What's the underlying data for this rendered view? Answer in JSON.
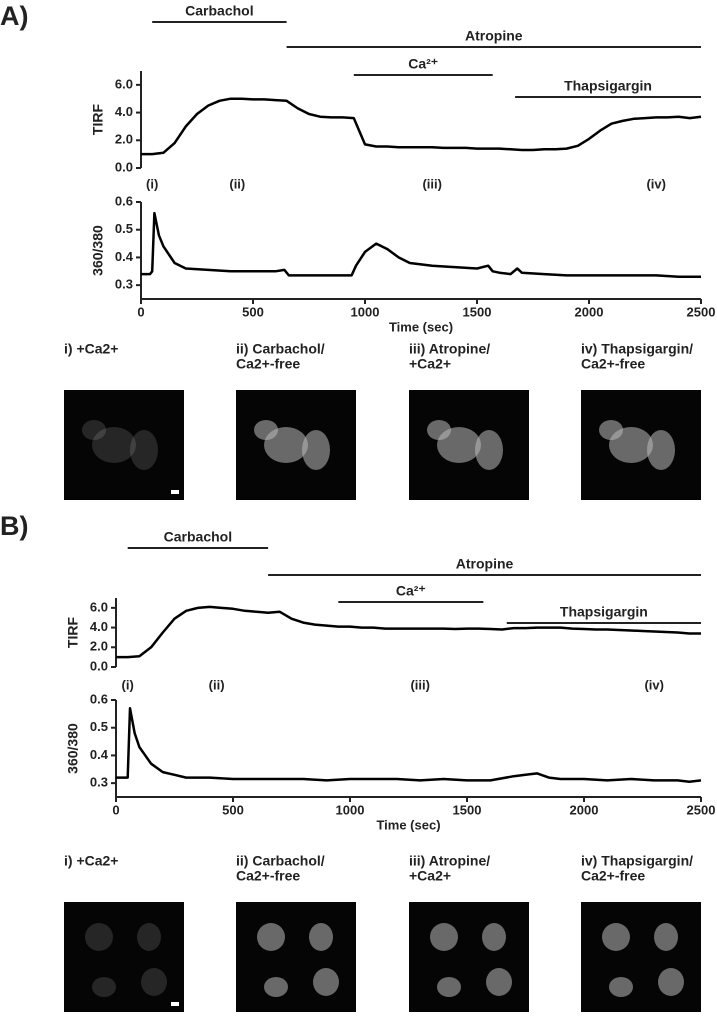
{
  "chart_data": [
    {
      "type": "line",
      "ylabel": "TIRF",
      "color": "#000000",
      "x": [
        0,
        50,
        100,
        150,
        200,
        250,
        300,
        350,
        400,
        450,
        500,
        550,
        600,
        650,
        700,
        750,
        800,
        850,
        900,
        950,
        1000,
        1050,
        1100,
        1150,
        1200,
        1250,
        1300,
        1350,
        1400,
        1450,
        1500,
        1550,
        1600,
        1650,
        1700,
        1750,
        1800,
        1850,
        1900,
        1950,
        2000,
        2050,
        2100,
        2150,
        2200,
        2250,
        2300,
        2350,
        2400,
        2450,
        2500
      ],
      "values": [
        1.0,
        1.0,
        1.1,
        1.8,
        3.0,
        3.9,
        4.5,
        4.85,
        5.0,
        5.0,
        4.95,
        4.95,
        4.9,
        4.85,
        4.3,
        3.9,
        3.7,
        3.65,
        3.65,
        3.6,
        1.7,
        1.55,
        1.55,
        1.5,
        1.5,
        1.5,
        1.5,
        1.45,
        1.45,
        1.45,
        1.4,
        1.4,
        1.4,
        1.35,
        1.3,
        1.3,
        1.35,
        1.35,
        1.4,
        1.6,
        2.1,
        2.7,
        3.2,
        3.4,
        3.55,
        3.6,
        3.65,
        3.65,
        3.7,
        3.6,
        3.7
      ],
      "xlim": [
        0,
        2500
      ],
      "ylim": [
        0,
        7
      ],
      "yticks": [
        {
          "value": 0,
          "label": "0.0"
        },
        {
          "value": 2,
          "label": "2.0"
        },
        {
          "value": 4,
          "label": "4.0"
        },
        {
          "value": 6,
          "label": "6.0"
        }
      ],
      "treatments": [
        {
          "label": "Carbachol",
          "start": 50,
          "end": 650
        },
        {
          "label": "Atropine",
          "start": 650,
          "end": 2500
        },
        {
          "label": "Ca²⁺",
          "start": 950,
          "end": 1570
        },
        {
          "label": "Thapsigargin",
          "start": 1670,
          "end": 2500
        }
      ],
      "annotations": [
        {
          "text": "(i)",
          "x": 50
        },
        {
          "text": "(ii)",
          "x": 430
        },
        {
          "text": "(iii)",
          "x": 1300
        },
        {
          "text": "(iv)",
          "x": 2300
        }
      ]
    },
    {
      "type": "line",
      "ylabel": "360/380",
      "xlabel": "Time (sec)",
      "color": "#000000",
      "x": [
        0,
        40,
        50,
        60,
        80,
        100,
        150,
        200,
        300,
        400,
        500,
        600,
        640,
        660,
        700,
        800,
        900,
        940,
        960,
        1000,
        1050,
        1100,
        1150,
        1200,
        1300,
        1400,
        1500,
        1550,
        1570,
        1600,
        1650,
        1680,
        1700,
        1800,
        1900,
        2000,
        2100,
        2200,
        2300,
        2400,
        2500
      ],
      "values": [
        0.34,
        0.34,
        0.35,
        0.56,
        0.48,
        0.44,
        0.38,
        0.36,
        0.355,
        0.35,
        0.35,
        0.35,
        0.355,
        0.335,
        0.335,
        0.335,
        0.335,
        0.335,
        0.37,
        0.42,
        0.45,
        0.43,
        0.4,
        0.38,
        0.37,
        0.365,
        0.36,
        0.37,
        0.35,
        0.345,
        0.34,
        0.36,
        0.345,
        0.34,
        0.335,
        0.335,
        0.335,
        0.335,
        0.335,
        0.33,
        0.33
      ],
      "xlim": [
        0,
        2500
      ],
      "ylim": [
        0.25,
        0.6
      ],
      "xticks": [
        0,
        500,
        1000,
        1500,
        2000,
        2500
      ],
      "yticks": [
        0.3,
        0.4,
        0.5,
        0.6
      ]
    },
    {
      "type": "line",
      "ylabel": "TIRF",
      "color": "#000000",
      "x": [
        0,
        50,
        100,
        150,
        200,
        250,
        300,
        350,
        400,
        450,
        500,
        550,
        600,
        650,
        700,
        750,
        800,
        850,
        900,
        950,
        1000,
        1050,
        1100,
        1150,
        1200,
        1250,
        1300,
        1350,
        1400,
        1450,
        1500,
        1550,
        1600,
        1650,
        1700,
        1750,
        1800,
        1850,
        1900,
        1950,
        2000,
        2050,
        2100,
        2150,
        2200,
        2250,
        2300,
        2350,
        2400,
        2450,
        2500
      ],
      "values": [
        1.0,
        1.0,
        1.1,
        2.0,
        3.5,
        4.9,
        5.7,
        6.0,
        6.1,
        6.0,
        5.9,
        5.7,
        5.6,
        5.5,
        5.6,
        4.9,
        4.5,
        4.3,
        4.2,
        4.1,
        4.1,
        4.0,
        4.0,
        3.9,
        3.9,
        3.9,
        3.9,
        3.9,
        3.9,
        3.85,
        3.9,
        3.9,
        3.85,
        3.8,
        3.95,
        3.95,
        4.0,
        4.0,
        4.0,
        3.9,
        3.85,
        3.8,
        3.8,
        3.75,
        3.7,
        3.65,
        3.6,
        3.55,
        3.5,
        3.4,
        3.4
      ],
      "xlim": [
        0,
        2500
      ],
      "ylim": [
        0,
        7
      ],
      "yticks": [
        {
          "value": 0,
          "label": "0.0"
        },
        {
          "value": 2,
          "label": "2.0"
        },
        {
          "value": 4,
          "label": "4.0"
        },
        {
          "value": 6,
          "label": "6.0"
        }
      ],
      "treatments": [
        {
          "label": "Carbachol",
          "start": 50,
          "end": 650
        },
        {
          "label": "Atropine",
          "start": 650,
          "end": 2500
        },
        {
          "label": "Ca²⁺",
          "start": 950,
          "end": 1570
        },
        {
          "label": "Thapsigargin",
          "start": 1670,
          "end": 2500
        }
      ],
      "annotations": [
        {
          "text": "(i)",
          "x": 50
        },
        {
          "text": "(ii)",
          "x": 430
        },
        {
          "text": "(iii)",
          "x": 1300
        },
        {
          "text": "(iv)",
          "x": 2300
        }
      ]
    },
    {
      "type": "line",
      "ylabel": "360/380",
      "xlabel": "Time (sec)",
      "color": "#000000",
      "x": [
        0,
        40,
        50,
        60,
        80,
        100,
        150,
        200,
        250,
        300,
        400,
        500,
        600,
        700,
        800,
        900,
        1000,
        1100,
        1200,
        1300,
        1400,
        1500,
        1600,
        1700,
        1750,
        1800,
        1850,
        1900,
        2000,
        2100,
        2200,
        2300,
        2400,
        2450,
        2500
      ],
      "values": [
        0.32,
        0.32,
        0.32,
        0.57,
        0.48,
        0.43,
        0.37,
        0.34,
        0.33,
        0.32,
        0.32,
        0.315,
        0.315,
        0.315,
        0.315,
        0.31,
        0.315,
        0.315,
        0.315,
        0.31,
        0.315,
        0.31,
        0.31,
        0.325,
        0.33,
        0.335,
        0.32,
        0.315,
        0.315,
        0.31,
        0.315,
        0.31,
        0.31,
        0.305,
        0.31
      ],
      "xlim": [
        0,
        2500
      ],
      "ylim": [
        0.25,
        0.6
      ],
      "xticks": [
        0,
        500,
        1000,
        1500,
        2000,
        2500
      ],
      "yticks": [
        0.3,
        0.4,
        0.5,
        0.6
      ]
    }
  ],
  "panels": [
    {
      "label": "A)",
      "images": [
        {
          "caption": [
            "i) +Ca2+"
          ]
        },
        {
          "caption": [
            "ii) Carbachol/",
            "Ca2+-free"
          ]
        },
        {
          "caption": [
            "iii) Atropine/",
            "+Ca2+"
          ]
        },
        {
          "caption": [
            "iv) Thapsigargin/",
            "Ca2+-free"
          ]
        }
      ]
    },
    {
      "label": "B)",
      "images": [
        {
          "caption": [
            "i) +Ca2+"
          ]
        },
        {
          "caption": [
            "ii) Carbachol/",
            "Ca2+-free"
          ]
        },
        {
          "caption": [
            "iii) Atropine/",
            "+Ca2+"
          ]
        },
        {
          "caption": [
            "iv) Thapsigargin/",
            "Ca2+-free"
          ]
        }
      ]
    }
  ]
}
